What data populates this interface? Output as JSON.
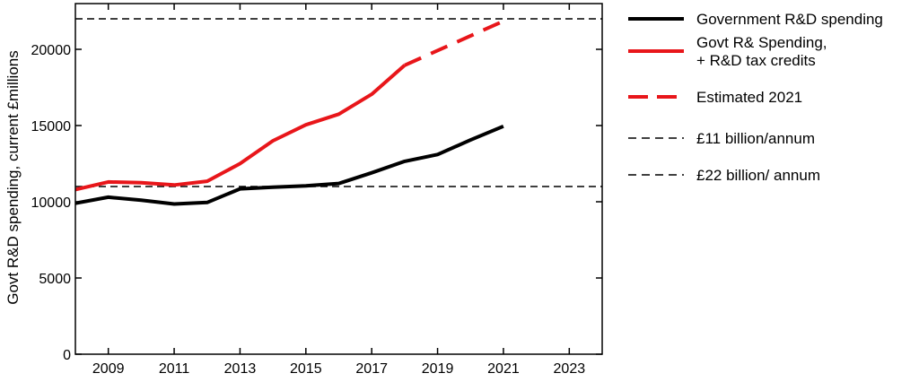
{
  "chart_data": {
    "type": "line",
    "ylabel": "Govt R&D spending, current £millions",
    "xlim": [
      2008,
      2024
    ],
    "ylim": [
      0,
      23000
    ],
    "xticks": [
      2009,
      2011,
      2013,
      2015,
      2017,
      2019,
      2021,
      2023
    ],
    "yticks": [
      0,
      5000,
      10000,
      15000,
      20000
    ],
    "grid": false,
    "legend_position": "right",
    "series": [
      {
        "name": "Government R&D spending",
        "color": "#000000",
        "style": "solid",
        "x": [
          2008,
          2009,
          2010,
          2011,
          2012,
          2013,
          2014,
          2015,
          2016,
          2017,
          2018,
          2019,
          2020,
          2021
        ],
        "y": [
          9900,
          10300,
          10100,
          9850,
          9950,
          10850,
          10950,
          11050,
          11200,
          11900,
          12650,
          13100,
          14050,
          14950
        ]
      },
      {
        "name": "Govt R& Spending,\n+ R&D tax credits",
        "color": "#e8161a",
        "style": "solid",
        "x": [
          2008,
          2009,
          2010,
          2011,
          2012,
          2013,
          2014,
          2015,
          2016,
          2017,
          2018
        ],
        "y": [
          10800,
          11300,
          11250,
          11100,
          11350,
          12500,
          14000,
          15050,
          15750,
          17050,
          18950
        ]
      },
      {
        "name": "Estimated 2021",
        "color": "#e8161a",
        "style": "dashed",
        "x": [
          2018,
          2021
        ],
        "y": [
          18950,
          21850
        ]
      },
      {
        "name": "£11 billion/annum",
        "color": "#000000",
        "style": "dashed-thin",
        "x": [
          2008,
          2024
        ],
        "y": [
          11000,
          11000
        ]
      },
      {
        "name": "£22 billion/ annum",
        "color": "#000000",
        "style": "dashed-thin",
        "x": [
          2008,
          2024
        ],
        "y": [
          22000,
          22000
        ]
      }
    ]
  }
}
